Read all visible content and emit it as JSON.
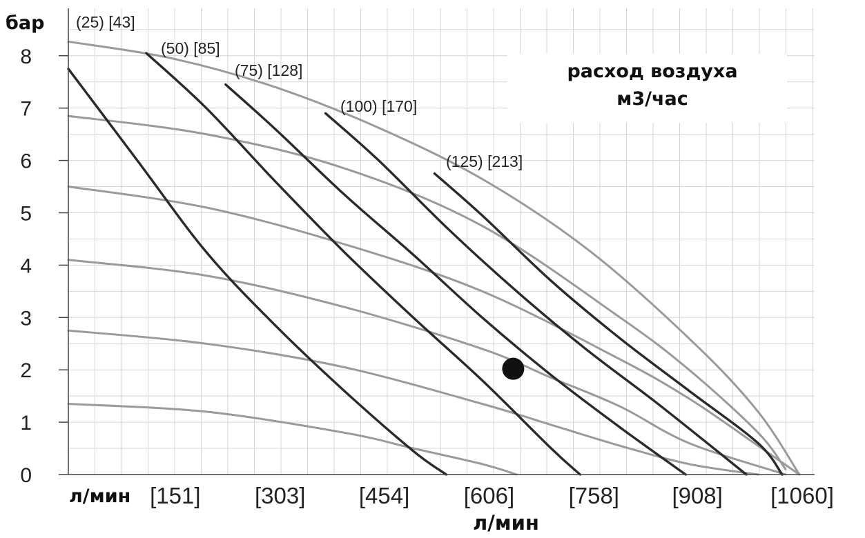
{
  "chart_data": {
    "type": "line",
    "ylabel": "бар",
    "xlabel": "л/мин",
    "x_axis_left_label": "л/мин",
    "x_tick_labels": [
      "[151]",
      "[303]",
      "[454]",
      "[606]",
      "[758]",
      "[908]",
      "[1060]"
    ],
    "x_ticks": [
      151,
      303,
      454,
      606,
      758,
      908,
      1060
    ],
    "y_ticks": [
      0,
      1,
      2,
      3,
      4,
      5,
      6,
      7,
      8
    ],
    "xlim": [
      0,
      1060
    ],
    "ylim": [
      0,
      8.6
    ],
    "grid": true,
    "legend_title_line1": "расход воздуха",
    "legend_title_line2": "м3/час",
    "series": [
      {
        "name": "(25) [43]",
        "kind": "air",
        "x": [
          0,
          150,
          300,
          454,
          606,
          758,
          908,
          1000,
          1060
        ],
        "y": [
          8.27,
          7.95,
          7.4,
          6.6,
          5.6,
          4.25,
          2.5,
          1.2,
          0
        ]
      },
      {
        "kind": "pressure",
        "x": [
          0,
          200,
          400,
          600,
          800,
          900,
          1000,
          1040
        ],
        "y": [
          6.85,
          6.5,
          5.85,
          4.75,
          3.0,
          2.0,
          0.8,
          0.1
        ]
      },
      {
        "kind": "pressure",
        "x": [
          0,
          200,
          400,
          600,
          800,
          900,
          1000,
          1060
        ],
        "y": [
          5.5,
          5.1,
          4.4,
          3.5,
          2.2,
          1.45,
          0.55,
          0
        ]
      },
      {
        "kind": "pressure",
        "x": [
          0,
          200,
          400,
          600,
          700,
          800,
          900,
          1040
        ],
        "y": [
          4.1,
          3.8,
          3.2,
          2.4,
          1.85,
          1.3,
          0.6,
          0
        ]
      },
      {
        "kind": "pressure",
        "x": [
          0,
          200,
          400,
          600,
          700,
          800,
          900,
          1000
        ],
        "y": [
          2.75,
          2.5,
          2.05,
          1.35,
          0.95,
          0.55,
          0.2,
          0
        ]
      },
      {
        "kind": "pressure",
        "x": [
          0,
          200,
          400,
          500,
          600,
          650
        ],
        "y": [
          1.35,
          1.2,
          0.8,
          0.5,
          0.2,
          0
        ]
      },
      {
        "name": "(25) [43]",
        "kind": "air",
        "x": [
          0,
          100,
          200,
          300,
          400,
          500,
          548
        ],
        "y": [
          7.75,
          6.0,
          4.25,
          2.85,
          1.6,
          0.45,
          0
        ]
      },
      {
        "name": "(50) [85]",
        "kind": "air",
        "x": [
          113,
          200,
          300,
          400,
          500,
          600,
          700,
          742
        ],
        "y": [
          8.05,
          7.0,
          5.6,
          4.25,
          3.0,
          1.8,
          0.5,
          0
        ]
      },
      {
        "name": "(75) [128]",
        "kind": "air",
        "x": [
          228,
          300,
          400,
          500,
          600,
          700,
          800,
          895
        ],
        "y": [
          7.45,
          6.6,
          5.35,
          4.2,
          3.0,
          1.9,
          0.9,
          0
        ]
      },
      {
        "name": "(100) [170]",
        "kind": "air",
        "x": [
          373,
          450,
          550,
          650,
          750,
          850,
          950,
          983
        ],
        "y": [
          6.9,
          6.0,
          4.7,
          3.5,
          2.4,
          1.4,
          0.35,
          0
        ]
      },
      {
        "name": "(125) [213]",
        "kind": "air",
        "x": [
          531,
          600,
          700,
          800,
          900,
          1000,
          1035
        ],
        "y": [
          5.75,
          4.95,
          3.7,
          2.6,
          1.6,
          0.6,
          0
        ]
      }
    ],
    "curve_labels": [
      "(25) [43]",
      "(50) [85]",
      "(75) [128]",
      "(100) [170]",
      "(125) [213]"
    ],
    "marker": {
      "x": 645,
      "y": 2.02
    },
    "colors": {
      "air": "#2a2a2a",
      "pressure": "#9a9a9a",
      "grid": "#d4d4d4",
      "marker": "#111111"
    }
  }
}
